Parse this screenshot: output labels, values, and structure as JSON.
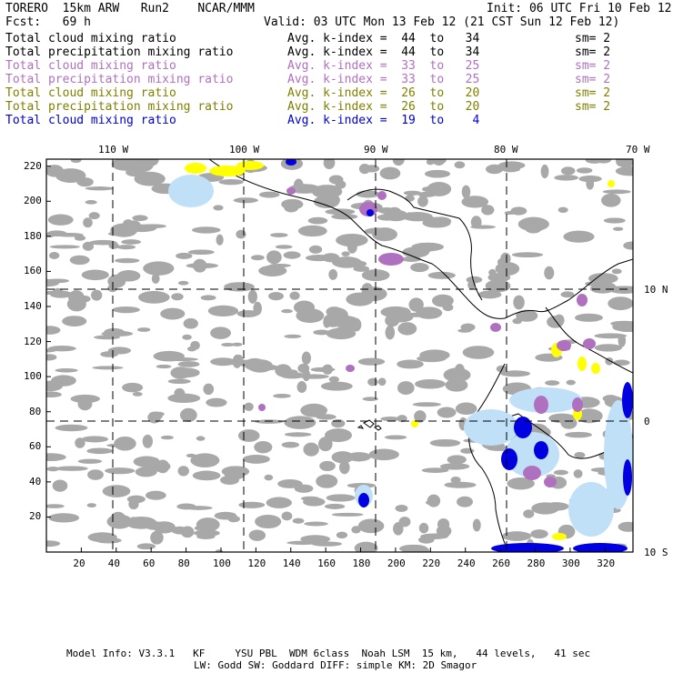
{
  "header": {
    "model": "TORERO  15km ARW   Run2    NCAR/MMM",
    "init": "Init: 06 UTC Fri 10 Feb 12",
    "fcst": "Fcst:   69 h",
    "valid": "Valid: 03 UTC Mon 13 Feb 12 (21 CST Sun 12 Feb 12)"
  },
  "fields": [
    {
      "name": "Total cloud mixing ratio",
      "avg": "Avg. k-index =  44  to   34",
      "sm": "sm= 2",
      "color": "#000000"
    },
    {
      "name": "Total precipitation mixing ratio",
      "avg": "Avg. k-index =  44  to   34",
      "sm": "sm= 2",
      "color": "#000000"
    },
    {
      "name": "Total cloud mixing ratio",
      "avg": "Avg. k-index =  33  to   25",
      "sm": "sm= 2",
      "color": "#b070c0"
    },
    {
      "name": "Total precipitation mixing ratio",
      "avg": "Avg. k-index =  33  to   25",
      "sm": "sm= 2",
      "color": "#b070c0"
    },
    {
      "name": "Total cloud mixing ratio",
      "avg": "Avg. k-index =  26  to   20",
      "sm": "sm= 2",
      "color": "#808000"
    },
    {
      "name": "Total precipitation mixing ratio",
      "avg": "Avg. k-index =  26  to   20",
      "sm": "sm= 2",
      "color": "#808000"
    },
    {
      "name": "Total cloud mixing ratio",
      "avg": "Avg. k-index =  19  to    4",
      "sm": "",
      "color": "#0000d0"
    }
  ],
  "map": {
    "lon_labels": [
      "110 W",
      "100 W",
      "90 W",
      "80 W",
      "70 W"
    ],
    "lat_labels": [
      "10 N",
      "0",
      "10 S"
    ],
    "x_ticks": [
      "20",
      "40",
      "60",
      "80",
      "100",
      "120",
      "140",
      "160",
      "180",
      "200",
      "220",
      "240",
      "260",
      "280",
      "300",
      "320"
    ],
    "y_ticks": [
      "220",
      "200",
      "180",
      "160",
      "140",
      "120",
      "100",
      "80",
      "60",
      "40",
      "20"
    ],
    "colors": {
      "gray": "#a8a8a8",
      "purple": "#b070c0",
      "yellow": "#ffff00",
      "lightblue": "#c0e0f8",
      "blue": "#0000e0"
    }
  },
  "footer": {
    "line1": "Model Info: V3.3.1   KF     YSU PBL  WDM 6class  Noah LSM  15 km,   44 levels,   41 sec",
    "line2": "LW: Godd SW: Goddard DIFF: simple KM: 2D Smagor"
  }
}
